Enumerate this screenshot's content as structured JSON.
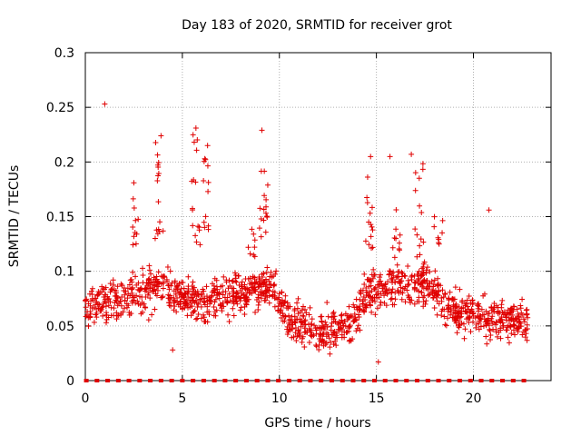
{
  "chart_data": {
    "type": "scatter",
    "title": "Day 183 of 2020, SRMTID for receiver grot",
    "xlabel": "GPS time / hours",
    "ylabel": "SRMTID / TECUs",
    "xlim": [
      0,
      24
    ],
    "ylim": [
      0,
      0.3
    ],
    "x_ticks": [
      0,
      5,
      10,
      15,
      20
    ],
    "x_tick_labels": [
      "0",
      "5",
      "10",
      "15",
      "20"
    ],
    "y_ticks": [
      0,
      0.05,
      0.1,
      0.15,
      0.2,
      0.25,
      0.3
    ],
    "y_tick_labels": [
      "0",
      "0.05",
      "0.1",
      "0.15",
      "0.2",
      "0.25",
      "0.3"
    ],
    "grid": true,
    "marker": "plus",
    "series_color": "#e00000",
    "outliers": [
      {
        "x": 1.0,
        "y": 0.253
      },
      {
        "x": 3.9,
        "y": 0.224
      },
      {
        "x": 5.7,
        "y": 0.231
      },
      {
        "x": 6.3,
        "y": 0.215
      },
      {
        "x": 9.1,
        "y": 0.229
      },
      {
        "x": 14.7,
        "y": 0.205
      },
      {
        "x": 15.7,
        "y": 0.205
      },
      {
        "x": 16.8,
        "y": 0.207
      },
      {
        "x": 2.5,
        "y": 0.181
      },
      {
        "x": 20.8,
        "y": 0.156
      },
      {
        "x": 15.1,
        "y": 0.017
      },
      {
        "x": 4.5,
        "y": 0.028
      }
    ],
    "bursts": [
      {
        "x": 2.5,
        "y_min": 0.12,
        "y_max": 0.17,
        "n": 10
      },
      {
        "x": 3.8,
        "y_min": 0.13,
        "y_max": 0.22,
        "n": 16
      },
      {
        "x": 5.7,
        "y_min": 0.12,
        "y_max": 0.23,
        "n": 16
      },
      {
        "x": 6.2,
        "y_min": 0.12,
        "y_max": 0.21,
        "n": 12
      },
      {
        "x": 8.6,
        "y_min": 0.11,
        "y_max": 0.14,
        "n": 8
      },
      {
        "x": 9.2,
        "y_min": 0.13,
        "y_max": 0.2,
        "n": 16
      },
      {
        "x": 14.6,
        "y_min": 0.12,
        "y_max": 0.2,
        "n": 14
      },
      {
        "x": 16.0,
        "y_min": 0.11,
        "y_max": 0.17,
        "n": 10
      },
      {
        "x": 17.2,
        "y_min": 0.12,
        "y_max": 0.2,
        "n": 12
      },
      {
        "x": 18.2,
        "y_min": 0.1,
        "y_max": 0.15,
        "n": 8
      }
    ],
    "zero_series_x_range": [
      0,
      22.8
    ],
    "zero_series_step": 0.55,
    "dense_cloud": {
      "x_range": [
        0,
        22.8
      ],
      "n": 1400,
      "baseline_by_hour": [
        [
          0,
          0.07
        ],
        [
          2,
          0.075
        ],
        [
          4,
          0.085
        ],
        [
          6,
          0.07
        ],
        [
          8,
          0.08
        ],
        [
          9.5,
          0.09
        ],
        [
          10.5,
          0.055
        ],
        [
          12,
          0.045
        ],
        [
          13.5,
          0.05
        ],
        [
          14.5,
          0.08
        ],
        [
          16,
          0.085
        ],
        [
          17.5,
          0.09
        ],
        [
          19,
          0.065
        ],
        [
          20,
          0.06
        ],
        [
          22.8,
          0.055
        ]
      ]
    }
  }
}
